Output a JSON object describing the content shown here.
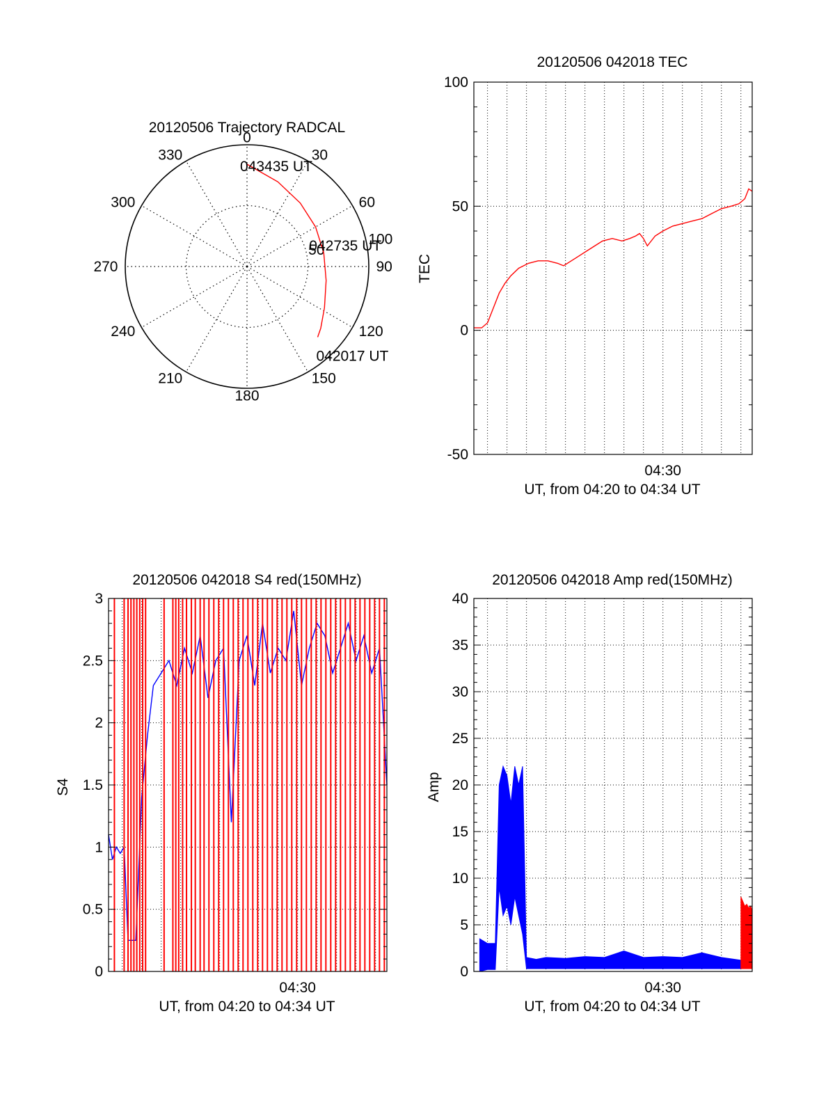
{
  "chart_data": [
    {
      "type": "polar",
      "title": "20120506 Trajectory RADCAL",
      "azimuth_ticks": [
        "0",
        "30",
        "60",
        "90",
        "120",
        "150",
        "180",
        "210",
        "240",
        "270",
        "300",
        "330"
      ],
      "radial_ticks": [
        "50",
        "100"
      ],
      "rlim": [
        0,
        100
      ],
      "grid": true,
      "trajectory": {
        "color": "#ff0000",
        "points": [
          {
            "az": 0,
            "r": 84
          },
          {
            "az": 20,
            "r": 74
          },
          {
            "az": 40,
            "r": 68
          },
          {
            "az": 60,
            "r": 65
          },
          {
            "az": 80,
            "r": 64
          },
          {
            "az": 100,
            "r": 66
          },
          {
            "az": 118,
            "r": 72
          },
          {
            "az": 130,
            "r": 79
          },
          {
            "az": 135,
            "r": 82
          }
        ]
      },
      "annotations": [
        {
          "text": "043435 UT",
          "az": 0,
          "r": 84
        },
        {
          "text": "042735 UT",
          "az": 78,
          "r": 58
        },
        {
          "text": "042017 UT",
          "az": 135,
          "r": 82
        }
      ]
    },
    {
      "type": "line",
      "title": "20120506 042018 TEC",
      "xlabel": "UT, from 04:20 to 04:34 UT",
      "ylabel": "TEC",
      "ylim": [
        -50,
        100
      ],
      "yticks": [
        "-50",
        "0",
        "50",
        "100"
      ],
      "xlim_minutes": [
        20.3,
        34.58
      ],
      "xtick_labels": [
        {
          "minute": 30,
          "label": "04:30"
        }
      ],
      "grid": true,
      "series": [
        {
          "color": "#ff0000",
          "x": [
            20.3,
            20.7,
            21.0,
            21.3,
            21.6,
            21.9,
            22.2,
            22.6,
            23.1,
            23.6,
            24.1,
            24.6,
            24.9,
            25.3,
            25.7,
            26.1,
            26.5,
            26.9,
            27.4,
            27.9,
            28.3,
            28.6,
            28.8,
            29.0,
            29.2,
            29.6,
            30.0,
            30.5,
            31.0,
            31.5,
            32.0,
            32.5,
            33.0,
            33.5,
            33.9,
            34.2,
            34.4,
            34.58
          ],
          "y": [
            1,
            1,
            3,
            9,
            15,
            19,
            22,
            25,
            27,
            28,
            28,
            27,
            26,
            28,
            30,
            32,
            34,
            36,
            37,
            36,
            37,
            38,
            39,
            37,
            34,
            38,
            40,
            42,
            43,
            44,
            45,
            47,
            49,
            50,
            51,
            53,
            57,
            56
          ]
        }
      ]
    },
    {
      "type": "line",
      "title": "20120506 042018 S4 red(150MHz)",
      "xlabel": "UT, from 04:20 to 04:34 UT",
      "ylabel": "S4",
      "ylim": [
        0,
        3
      ],
      "yticks": [
        "0",
        "0.5",
        "1",
        "1.5",
        "2",
        "2.5",
        "3"
      ],
      "xlim_minutes": [
        20.3,
        34.58
      ],
      "xtick_labels": [
        {
          "minute": 30,
          "label": "04:30"
        }
      ],
      "grid": true,
      "series": [
        {
          "color": "#0000ff",
          "x": [
            20.3,
            20.5,
            20.7,
            20.9,
            21.1,
            21.3,
            21.5,
            21.7,
            22.0,
            22.3,
            22.6,
            23.0,
            23.4,
            23.8,
            24.2,
            24.6,
            25.0,
            25.4,
            25.8,
            26.2,
            26.6,
            27.0,
            27.4,
            27.8,
            28.2,
            28.6,
            29.0,
            29.4,
            29.8,
            30.2,
            30.6,
            31.0,
            31.4,
            31.8,
            32.2,
            32.6,
            33.0,
            33.4,
            33.8,
            34.2,
            34.58
          ],
          "y": [
            1.1,
            0.9,
            1.0,
            0.95,
            1.0,
            0.25,
            0.25,
            0.25,
            1.4,
            1.9,
            2.3,
            2.4,
            2.5,
            2.3,
            2.6,
            2.4,
            2.7,
            2.2,
            2.5,
            2.6,
            1.2,
            2.5,
            2.7,
            2.3,
            2.8,
            2.4,
            2.6,
            2.5,
            2.9,
            2.3,
            2.6,
            2.8,
            2.7,
            2.4,
            2.6,
            2.8,
            2.5,
            2.7,
            2.4,
            2.6,
            1.5
          ]
        },
        {
          "color": "#ff0000",
          "x": [
            20.6,
            21.1,
            21.3,
            21.45,
            21.6,
            21.75,
            21.9,
            22.05,
            22.2,
            23.15,
            23.6,
            23.75,
            23.9,
            24.1,
            24.3,
            24.55,
            24.75,
            25.0,
            25.2,
            25.45,
            25.7,
            25.95,
            26.2,
            26.45,
            26.7,
            26.95,
            27.2,
            27.45,
            27.7,
            27.95,
            28.2,
            28.45,
            28.7,
            28.95,
            29.2,
            29.45,
            29.7,
            29.95,
            30.2,
            30.45,
            30.7,
            30.95,
            31.2,
            31.45,
            31.7,
            31.95,
            32.2,
            32.45,
            32.7,
            32.95,
            33.2,
            33.45,
            33.7,
            33.95,
            34.2,
            34.45
          ],
          "y": [
            3,
            3,
            3,
            3,
            3,
            3,
            3,
            3,
            3,
            3,
            3,
            3,
            3,
            3,
            3,
            3,
            3,
            3,
            3,
            3,
            3,
            3,
            3,
            3,
            3,
            3,
            3,
            3,
            3,
            3,
            3,
            3,
            3,
            3,
            3,
            3,
            3,
            3,
            3,
            3,
            3,
            3,
            3,
            3,
            3,
            3,
            3,
            3,
            3,
            3,
            3,
            3,
            3,
            3,
            3,
            3
          ],
          "style": "spikes"
        }
      ]
    },
    {
      "type": "line",
      "title": "20120506 042018 Amp red(150MHz)",
      "xlabel": "UT, from 04:20 to 04:34 UT",
      "ylabel": "Amp",
      "ylim": [
        0,
        40
      ],
      "yticks": [
        "0",
        "5",
        "10",
        "15",
        "20",
        "25",
        "30",
        "35",
        "40"
      ],
      "xlim_minutes": [
        20.3,
        34.58
      ],
      "xtick_labels": [
        {
          "minute": 30,
          "label": "04:30"
        }
      ],
      "grid": true,
      "series": [
        {
          "color": "#0000ff",
          "x": [
            20.6,
            21.0,
            21.4,
            21.6,
            21.8,
            22.0,
            22.2,
            22.4,
            22.6,
            22.8,
            23.0,
            23.5,
            24.0,
            25.0,
            26.0,
            27.0,
            28.0,
            29.0,
            30.0,
            31.0,
            32.0,
            33.0,
            34.0,
            34.58
          ],
          "y": [
            3.5,
            3.0,
            3.0,
            20,
            22,
            21,
            18,
            22,
            20,
            22,
            1.5,
            1.3,
            1.5,
            1.4,
            1.6,
            1.5,
            2.2,
            1.5,
            1.6,
            1.5,
            2.0,
            1.5,
            1.2,
            1.0
          ],
          "lower": [
            0,
            0.2,
            0.2,
            9,
            6,
            7,
            5,
            8,
            6,
            4,
            0.3,
            0.3,
            0.3,
            0.3,
            0.3,
            0.3,
            0.3,
            0.3,
            0.3,
            0.3,
            0.3,
            0.3,
            0.3,
            0.3
          ]
        },
        {
          "color": "#ff0000",
          "x": [
            34.0,
            34.1,
            34.2,
            34.3,
            34.4,
            34.5,
            34.58
          ],
          "y": [
            8,
            7.5,
            7,
            7.2,
            6.8,
            7,
            6.5
          ],
          "lower": [
            0.3,
            0.3,
            0.3,
            0.3,
            0.3,
            0.3,
            0.3
          ]
        }
      ]
    }
  ]
}
